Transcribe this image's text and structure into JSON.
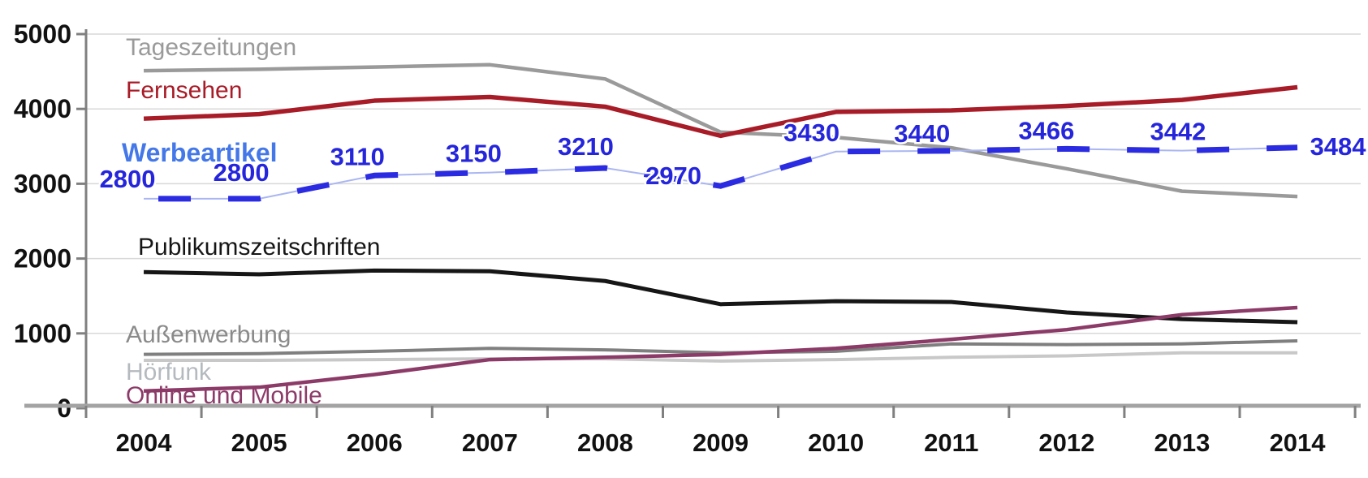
{
  "background": "#FFFFFF",
  "chart_data": {
    "type": "line",
    "title": "",
    "xlabel": "",
    "ylabel": "",
    "categories": [
      "2004",
      "2005",
      "2006",
      "2007",
      "2008",
      "2009",
      "2010",
      "2011",
      "2012",
      "2013",
      "2014"
    ],
    "ylim": [
      0,
      5000
    ],
    "yticks": [
      0,
      1000,
      2000,
      3000,
      4000,
      5000
    ],
    "ytick_labels": [
      "0",
      "1000",
      "2000",
      "3000",
      "4000",
      "5000"
    ],
    "grid": true,
    "legend_position": "inline-labels-left",
    "axis_color": "#808080",
    "grid_color": "#D8D8D8",
    "tick_text_color": "#111111",
    "series": [
      {
        "name": "Tageszeitungen",
        "color": "#9A9A9A",
        "label_color": "#9A9A9A",
        "line_style": "solid",
        "values": [
          4510,
          4530,
          4560,
          4590,
          4400,
          3690,
          3620,
          3480,
          3200,
          2900,
          2830
        ]
      },
      {
        "name": "Fernsehen",
        "color": "#A81C28",
        "label_color": "#A81C28",
        "line_style": "solid",
        "values": [
          3870,
          3930,
          4110,
          4160,
          4030,
          3640,
          3960,
          3980,
          4040,
          4120,
          4290
        ]
      },
      {
        "name": "Werbeartikel",
        "color": "#2B2BE2",
        "label_color": "#4478E8",
        "underlay_color": "#AAB6F2",
        "value_label_color": "#2525DC",
        "line_style": "dashed",
        "show_value_labels": true,
        "values": [
          2800,
          2800,
          3110,
          3150,
          3210,
          2970,
          3430,
          3440,
          3466,
          3442,
          3484
        ],
        "value_labels": [
          "2800",
          "2800",
          "3110",
          "3150",
          "3210",
          "2970",
          "3430",
          "3440",
          "3466",
          "3442",
          "3484"
        ]
      },
      {
        "name": "Publikumszeitschriften",
        "color": "#161616",
        "label_color": "#161616",
        "line_style": "solid",
        "values": [
          1820,
          1790,
          1840,
          1830,
          1700,
          1390,
          1430,
          1420,
          1280,
          1190,
          1150
        ]
      },
      {
        "name": "Außenwerbung",
        "color": "#7F7F7F",
        "label_color": "#8A8A8A",
        "line_style": "solid",
        "values": [
          720,
          730,
          760,
          800,
          780,
          740,
          760,
          860,
          850,
          860,
          900
        ]
      },
      {
        "name": "Hörfunk",
        "color": "#C8C8C8",
        "label_color": "#B5BABF",
        "line_style": "solid",
        "values": [
          640,
          640,
          650,
          660,
          660,
          630,
          650,
          680,
          700,
          740,
          740
        ]
      },
      {
        "name": "Online und Mobile",
        "color": "#8C3A68",
        "label_color": "#8C3A68",
        "line_style": "solid",
        "values": [
          230,
          280,
          450,
          650,
          680,
          720,
          800,
          920,
          1050,
          1250,
          1345
        ]
      }
    ]
  }
}
